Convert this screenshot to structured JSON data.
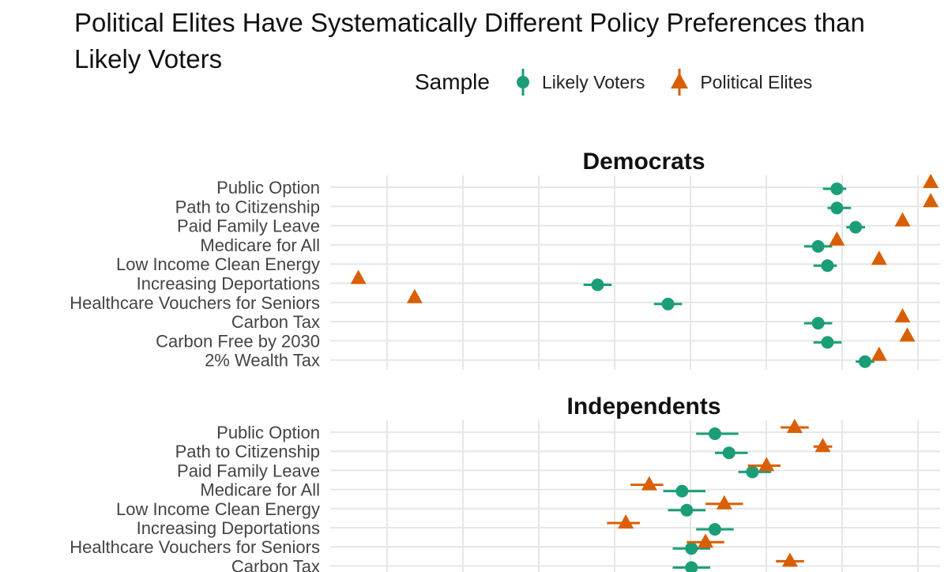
{
  "title": "Political Elites Have Systematically Different Policy Preferences than Likely Voters",
  "legend": {
    "title": "Sample",
    "items": [
      {
        "label": "Likely Voters",
        "shape": "circle",
        "color": "#1b9e77"
      },
      {
        "label": "Political Elites",
        "shape": "triangle",
        "color": "#d95f02"
      }
    ]
  },
  "chart_data": [
    {
      "type": "scatter",
      "panel": "Democrats",
      "categories": [
        "Public Option",
        "Path to Citizenship",
        "Paid Family Leave",
        "Medicare for All",
        "Low Income Clean Energy",
        "Increasing Deportations",
        "Healthcare Vouchers for Seniors",
        "Carbon Tax",
        "Carbon Free by 2030",
        "2% Wealth Tax"
      ],
      "series": [
        {
          "name": "Likely Voters",
          "color": "#1b9e77",
          "values": [
            0.78,
            0.78,
            0.82,
            0.74,
            0.76,
            0.27,
            0.42,
            0.74,
            0.76,
            0.84
          ],
          "lo": [
            0.75,
            0.76,
            0.8,
            0.71,
            0.73,
            0.24,
            0.39,
            0.71,
            0.73,
            0.82
          ],
          "hi": [
            0.8,
            0.81,
            0.84,
            0.77,
            0.78,
            0.3,
            0.45,
            0.77,
            0.79,
            0.86
          ]
        },
        {
          "name": "Political Elites",
          "color": "#d95f02",
          "values": [
            0.98,
            0.98,
            0.92,
            0.78,
            0.87,
            -0.24,
            -0.12,
            0.92,
            0.93,
            0.87
          ],
          "lo": [
            0.98,
            0.98,
            0.92,
            0.77,
            0.87,
            -0.24,
            -0.13,
            0.92,
            0.93,
            0.86
          ],
          "hi": [
            0.98,
            0.98,
            0.92,
            0.79,
            0.87,
            -0.24,
            -0.11,
            0.92,
            0.93,
            0.88
          ]
        }
      ]
    },
    {
      "type": "scatter",
      "panel": "Independents",
      "categories": [
        "Public Option",
        "Path to Citizenship",
        "Paid Family Leave",
        "Medicare for All",
        "Low Income Clean Energy",
        "Increasing Deportations",
        "Healthcare Vouchers for Seniors",
        "Carbon Tax"
      ],
      "series": [
        {
          "name": "Likely Voters",
          "color": "#1b9e77",
          "values": [
            0.52,
            0.55,
            0.6,
            0.45,
            0.46,
            0.52,
            0.47,
            0.47
          ],
          "lo": [
            0.48,
            0.52,
            0.57,
            0.41,
            0.42,
            0.48,
            0.43,
            0.43
          ],
          "hi": [
            0.57,
            0.59,
            0.64,
            0.5,
            0.5,
            0.56,
            0.51,
            0.51
          ]
        },
        {
          "name": "Political Elites",
          "color": "#d95f02",
          "values": [
            0.69,
            0.75,
            0.63,
            0.38,
            0.54,
            0.33,
            0.5,
            0.68
          ],
          "lo": [
            0.66,
            0.73,
            0.59,
            0.34,
            0.5,
            0.29,
            0.46,
            0.65
          ],
          "hi": [
            0.72,
            0.77,
            0.66,
            0.41,
            0.58,
            0.36,
            0.54,
            0.71
          ]
        }
      ]
    }
  ]
}
